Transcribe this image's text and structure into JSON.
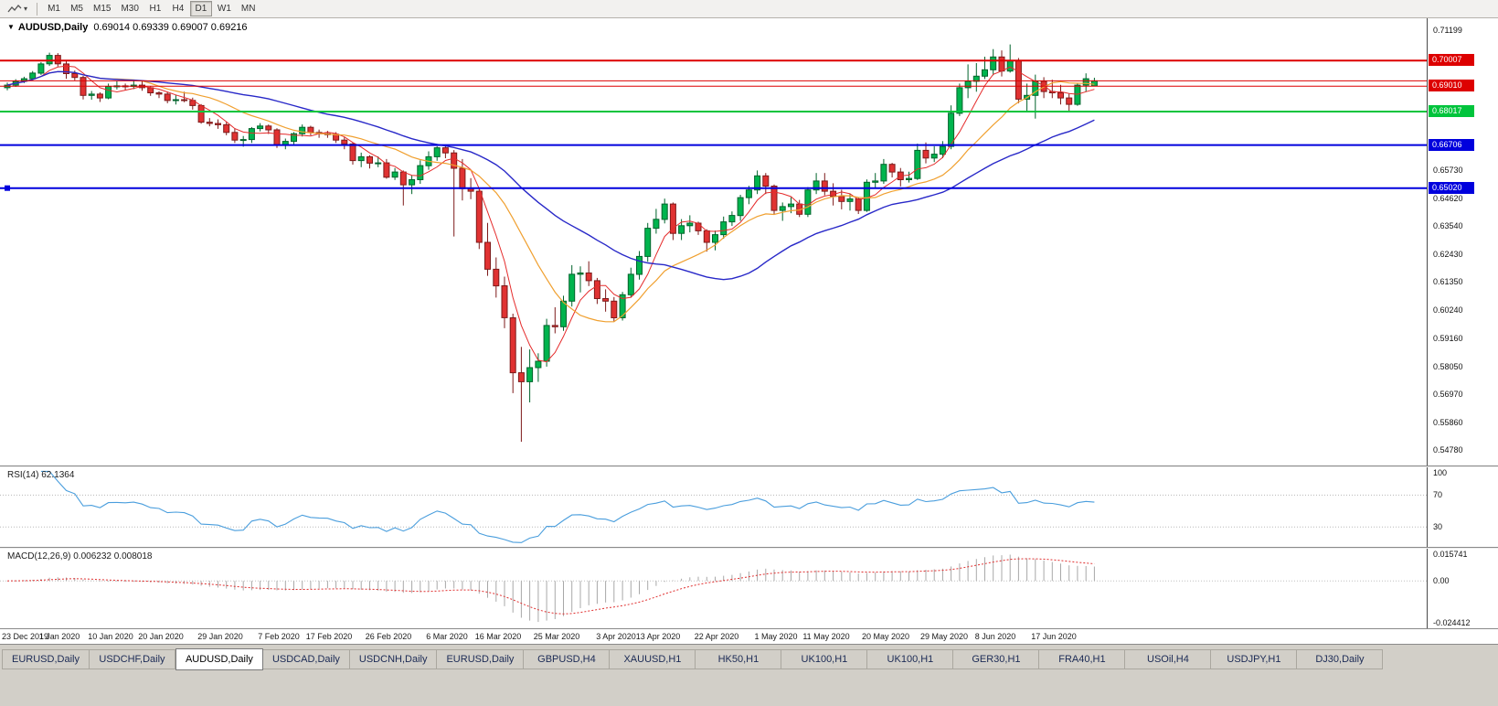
{
  "icons": {
    "caret_down": "▾",
    "collapse_triangle": "▼"
  },
  "toolbar": {
    "timeframes": [
      "M1",
      "M5",
      "M15",
      "M30",
      "H1",
      "H4",
      "D1",
      "W1",
      "MN"
    ],
    "active_timeframe": "D1"
  },
  "chart": {
    "symbol_period": "AUDUSD,Daily",
    "ohlc_line": "0.69014 0.69339 0.69007 0.69216",
    "open": "0.69014",
    "high": "0.69339",
    "low": "0.69007",
    "close": "0.69216"
  },
  "price_axis": {
    "ticks": [
      "0.71199",
      "0.65730",
      "0.64620",
      "0.63540",
      "0.62430",
      "0.61350",
      "0.60240",
      "0.59160",
      "0.58050",
      "0.56970",
      "0.55860",
      "0.54780"
    ]
  },
  "hlines": [
    {
      "price": 0.70007,
      "color": "#dd0000",
      "width": 2,
      "badge": "0.70007"
    },
    {
      "price": 0.69216,
      "color": "#dd0000",
      "width": 1,
      "badge": null
    },
    {
      "price": 0.6901,
      "color": "#dd0000",
      "width": 1,
      "badge": "0.69010"
    },
    {
      "price": 0.68017,
      "color": "#00c43c",
      "width": 2,
      "badge": "0.68017"
    },
    {
      "price": 0.66706,
      "color": "#0000dd",
      "width": 2,
      "badge": "0.66706"
    },
    {
      "price": 0.6502,
      "color": "#0000dd",
      "width": 2,
      "badge": "0.65020",
      "marker": true
    }
  ],
  "rsi_panel": {
    "label": "RSI(14) 62.1364",
    "axis": [
      "100",
      "70",
      "30"
    ],
    "levels": [
      70,
      30
    ],
    "line_color": "#4a9edd"
  },
  "macd_panel": {
    "label": "MACD(12,26,9) 0.006232 0.008018",
    "axis": [
      "0.015741",
      "0.00",
      "-0.024412"
    ],
    "hist_color": "#a8a8a8",
    "signal_color": "#e03030"
  },
  "date_axis": {
    "ticks": [
      {
        "label": "23 Dec 2019",
        "i": 0
      },
      {
        "label": "1 Jan 2020",
        "i": 6
      },
      {
        "label": "10 Jan 2020",
        "i": 12
      },
      {
        "label": "20 Jan 2020",
        "i": 18
      },
      {
        "label": "29 Jan 2020",
        "i": 25
      },
      {
        "label": "7 Feb 2020",
        "i": 32
      },
      {
        "label": "17 Feb 2020",
        "i": 38
      },
      {
        "label": "26 Feb 2020",
        "i": 45
      },
      {
        "label": "6 Mar 2020",
        "i": 52
      },
      {
        "label": "16 Mar 2020",
        "i": 58
      },
      {
        "label": "25 Mar 2020",
        "i": 65
      },
      {
        "label": "3 Apr 2020",
        "i": 72
      },
      {
        "label": "13 Apr 2020",
        "i": 77
      },
      {
        "label": "22 Apr 2020",
        "i": 84
      },
      {
        "label": "1 May 2020",
        "i": 91
      },
      {
        "label": "11 May 2020",
        "i": 97
      },
      {
        "label": "20 May 2020",
        "i": 104
      },
      {
        "label": "29 May 2020",
        "i": 111
      },
      {
        "label": "8 Jun 2020",
        "i": 117
      },
      {
        "label": "17 Jun 2020",
        "i": 124
      }
    ]
  },
  "tabs": {
    "active_index": 2,
    "items": [
      "EURUSD,Daily",
      "USDCHF,Daily",
      "AUDUSD,Daily",
      "USDCAD,Daily",
      "USDCNH,Daily",
      "EURUSD,Daily",
      "GBPUSD,H4",
      "XAUUSD,H1",
      "HK50,H1",
      "UK100,H1",
      "UK100,H1",
      "GER30,H1",
      "FRA40,H1",
      "USOil,H4",
      "USDJPY,H1",
      "DJ30,Daily"
    ]
  },
  "chart_data": {
    "type": "candlestick",
    "title": "AUDUSD,Daily",
    "ylim": [
      0.54172,
      0.71664
    ],
    "up_color": "#00b44e",
    "down_color": "#e03232",
    "ma_colors": [
      "#e52b2b",
      "#f0a030",
      "#2828c8"
    ],
    "candles": [
      [
        0.6895,
        0.6915,
        0.6885,
        0.6905
      ],
      [
        0.6905,
        0.6928,
        0.6898,
        0.692
      ],
      [
        0.692,
        0.6938,
        0.6913,
        0.693
      ],
      [
        0.693,
        0.696,
        0.6924,
        0.6952
      ],
      [
        0.6952,
        0.6995,
        0.6945,
        0.6988
      ],
      [
        0.6988,
        0.7032,
        0.698,
        0.7021
      ],
      [
        0.7021,
        0.703,
        0.6978,
        0.6988
      ],
      [
        0.6988,
        0.7,
        0.693,
        0.695
      ],
      [
        0.695,
        0.6962,
        0.6924,
        0.6935
      ],
      [
        0.6935,
        0.6941,
        0.6849,
        0.6865
      ],
      [
        0.6865,
        0.6882,
        0.6848,
        0.687
      ],
      [
        0.687,
        0.6877,
        0.6839,
        0.6855
      ],
      [
        0.6855,
        0.6911,
        0.685,
        0.69
      ],
      [
        0.69,
        0.692,
        0.6888,
        0.6902
      ],
      [
        0.6902,
        0.6911,
        0.6884,
        0.69
      ],
      [
        0.69,
        0.6926,
        0.6889,
        0.6905
      ],
      [
        0.6905,
        0.6921,
        0.6883,
        0.6895
      ],
      [
        0.6895,
        0.6901,
        0.6863,
        0.6875
      ],
      [
        0.6875,
        0.6881,
        0.6854,
        0.687
      ],
      [
        0.687,
        0.6879,
        0.6834,
        0.6845
      ],
      [
        0.6845,
        0.6866,
        0.6829,
        0.6848
      ],
      [
        0.6848,
        0.6879,
        0.6838,
        0.6845
      ],
      [
        0.6845,
        0.6856,
        0.6809,
        0.6825
      ],
      [
        0.6825,
        0.6831,
        0.6754,
        0.676
      ],
      [
        0.676,
        0.6776,
        0.6744,
        0.6755
      ],
      [
        0.6755,
        0.6771,
        0.6734,
        0.675
      ],
      [
        0.675,
        0.6761,
        0.6709,
        0.672
      ],
      [
        0.672,
        0.6736,
        0.6679,
        0.669
      ],
      [
        0.669,
        0.6706,
        0.6664,
        0.6692
      ],
      [
        0.6692,
        0.6741,
        0.6679,
        0.6735
      ],
      [
        0.6735,
        0.6756,
        0.6724,
        0.6745
      ],
      [
        0.6745,
        0.6751,
        0.6714,
        0.673
      ],
      [
        0.673,
        0.6736,
        0.6659,
        0.667
      ],
      [
        0.667,
        0.6696,
        0.6654,
        0.6685
      ],
      [
        0.6685,
        0.6721,
        0.6674,
        0.6715
      ],
      [
        0.6715,
        0.6751,
        0.6704,
        0.674
      ],
      [
        0.674,
        0.6746,
        0.6709,
        0.672
      ],
      [
        0.672,
        0.6731,
        0.6699,
        0.6715
      ],
      [
        0.6715,
        0.6726,
        0.6699,
        0.6713
      ],
      [
        0.6713,
        0.6721,
        0.6679,
        0.669
      ],
      [
        0.669,
        0.6701,
        0.6654,
        0.6675
      ],
      [
        0.6675,
        0.6681,
        0.6594,
        0.661
      ],
      [
        0.661,
        0.6641,
        0.6584,
        0.6625
      ],
      [
        0.6625,
        0.6631,
        0.6579,
        0.66
      ],
      [
        0.66,
        0.6626,
        0.6584,
        0.6601
      ],
      [
        0.6601,
        0.6616,
        0.6539,
        0.6545
      ],
      [
        0.6545,
        0.6581,
        0.6534,
        0.6565
      ],
      [
        0.6565,
        0.6571,
        0.6434,
        0.6515
      ],
      [
        0.6515,
        0.6551,
        0.6479,
        0.6535
      ],
      [
        0.6535,
        0.6611,
        0.6519,
        0.659
      ],
      [
        0.659,
        0.6646,
        0.6574,
        0.6625
      ],
      [
        0.6625,
        0.6666,
        0.6609,
        0.666
      ],
      [
        0.666,
        0.6671,
        0.6619,
        0.664
      ],
      [
        0.664,
        0.6651,
        0.6313,
        0.658
      ],
      [
        0.658,
        0.6616,
        0.6454,
        0.65
      ],
      [
        0.65,
        0.6541,
        0.6459,
        0.649
      ],
      [
        0.649,
        0.6501,
        0.6264,
        0.629
      ],
      [
        0.629,
        0.6366,
        0.6159,
        0.6185
      ],
      [
        0.6185,
        0.6231,
        0.6074,
        0.612
      ],
      [
        0.612,
        0.6156,
        0.5954,
        0.5995
      ],
      [
        0.5995,
        0.6011,
        0.57,
        0.578
      ],
      [
        0.578,
        0.5881,
        0.551,
        0.5745
      ],
      [
        0.5745,
        0.5871,
        0.5664,
        0.58
      ],
      [
        0.58,
        0.5856,
        0.5744,
        0.5825
      ],
      [
        0.5825,
        0.5991,
        0.5804,
        0.5965
      ],
      [
        0.5965,
        0.6036,
        0.5934,
        0.596
      ],
      [
        0.596,
        0.6081,
        0.5944,
        0.606
      ],
      [
        0.606,
        0.6201,
        0.6039,
        0.6165
      ],
      [
        0.6165,
        0.6196,
        0.6094,
        0.617
      ],
      [
        0.617,
        0.6216,
        0.6119,
        0.614
      ],
      [
        0.614,
        0.6151,
        0.6049,
        0.607
      ],
      [
        0.607,
        0.6106,
        0.6019,
        0.606
      ],
      [
        0.606,
        0.6076,
        0.5979,
        0.5995
      ],
      [
        0.5995,
        0.6096,
        0.5984,
        0.6085
      ],
      [
        0.6085,
        0.6191,
        0.6074,
        0.6165
      ],
      [
        0.6165,
        0.6256,
        0.6144,
        0.6235
      ],
      [
        0.6235,
        0.6366,
        0.6214,
        0.6345
      ],
      [
        0.6345,
        0.6421,
        0.6324,
        0.638
      ],
      [
        0.638,
        0.6461,
        0.6364,
        0.644
      ],
      [
        0.644,
        0.6446,
        0.6299,
        0.6325
      ],
      [
        0.6325,
        0.6381,
        0.6299,
        0.6355
      ],
      [
        0.6355,
        0.6396,
        0.6329,
        0.6365
      ],
      [
        0.6365,
        0.6371,
        0.6319,
        0.6335
      ],
      [
        0.6335,
        0.6341,
        0.6254,
        0.629
      ],
      [
        0.629,
        0.6336,
        0.6259,
        0.632
      ],
      [
        0.632,
        0.6391,
        0.6304,
        0.637
      ],
      [
        0.637,
        0.6411,
        0.6354,
        0.6395
      ],
      [
        0.6395,
        0.6476,
        0.6374,
        0.6465
      ],
      [
        0.6465,
        0.6511,
        0.6439,
        0.6495
      ],
      [
        0.6495,
        0.6571,
        0.6479,
        0.655
      ],
      [
        0.655,
        0.6561,
        0.6479,
        0.651
      ],
      [
        0.651,
        0.6516,
        0.6399,
        0.6415
      ],
      [
        0.6415,
        0.6446,
        0.6374,
        0.643
      ],
      [
        0.643,
        0.6466,
        0.6404,
        0.644
      ],
      [
        0.644,
        0.6456,
        0.6389,
        0.64
      ],
      [
        0.64,
        0.6506,
        0.6389,
        0.6495
      ],
      [
        0.6495,
        0.6561,
        0.6479,
        0.653
      ],
      [
        0.653,
        0.6561,
        0.6474,
        0.649
      ],
      [
        0.649,
        0.6521,
        0.6434,
        0.647
      ],
      [
        0.647,
        0.6496,
        0.6419,
        0.645
      ],
      [
        0.645,
        0.6481,
        0.6414,
        0.646
      ],
      [
        0.646,
        0.6466,
        0.6401,
        0.6415
      ],
      [
        0.6415,
        0.6536,
        0.6409,
        0.6525
      ],
      [
        0.6525,
        0.6561,
        0.6504,
        0.653
      ],
      [
        0.653,
        0.6616,
        0.6519,
        0.6595
      ],
      [
        0.6595,
        0.6601,
        0.6544,
        0.6565
      ],
      [
        0.6565,
        0.6581,
        0.6509,
        0.6535
      ],
      [
        0.6535,
        0.6566,
        0.6524,
        0.654
      ],
      [
        0.654,
        0.6676,
        0.6534,
        0.665
      ],
      [
        0.665,
        0.6681,
        0.6599,
        0.662
      ],
      [
        0.662,
        0.6666,
        0.6604,
        0.6635
      ],
      [
        0.6635,
        0.6686,
        0.6619,
        0.6665
      ],
      [
        0.6665,
        0.6826,
        0.6654,
        0.6795
      ],
      [
        0.6795,
        0.6911,
        0.6784,
        0.6895
      ],
      [
        0.6895,
        0.6986,
        0.6854,
        0.692
      ],
      [
        0.692,
        0.6991,
        0.6879,
        0.694
      ],
      [
        0.694,
        0.7016,
        0.6929,
        0.6965
      ],
      [
        0.6965,
        0.7046,
        0.6944,
        0.7015
      ],
      [
        0.7015,
        0.7041,
        0.6939,
        0.696
      ],
      [
        0.696,
        0.7064,
        0.6954,
        0.7
      ],
      [
        0.7,
        0.7011,
        0.6834,
        0.685
      ],
      [
        0.685,
        0.6911,
        0.6799,
        0.6865
      ],
      [
        0.6865,
        0.6946,
        0.6774,
        0.692
      ],
      [
        0.692,
        0.6936,
        0.6854,
        0.688
      ],
      [
        0.688,
        0.6926,
        0.6854,
        0.6875
      ],
      [
        0.6875,
        0.6906,
        0.6829,
        0.6855
      ],
      [
        0.6855,
        0.6871,
        0.6799,
        0.683
      ],
      [
        0.683,
        0.6911,
        0.6824,
        0.6905
      ],
      [
        0.6905,
        0.6951,
        0.6879,
        0.693
      ],
      [
        0.69014,
        0.69339,
        0.69007,
        0.69216
      ]
    ]
  }
}
